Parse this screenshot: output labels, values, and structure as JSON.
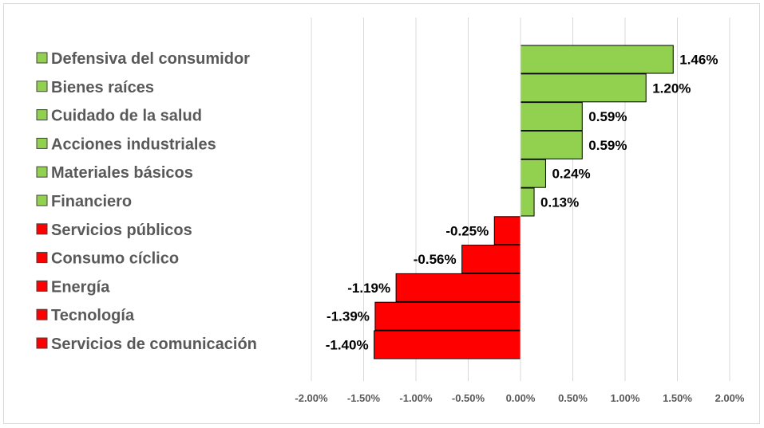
{
  "chart_data": {
    "type": "bar",
    "orientation": "horizontal",
    "categories": [
      "Defensiva del consumidor",
      "Bienes raíces",
      "Cuidado de la salud",
      "Acciones industriales",
      "Materiales básicos",
      "Financiero",
      "Servicios públicos",
      "Consumo cíclico",
      "Energía",
      "Tecnología",
      "Servicios de comunicación"
    ],
    "values": [
      1.46,
      1.2,
      0.59,
      0.59,
      0.24,
      0.13,
      -0.25,
      -0.56,
      -1.19,
      -1.39,
      -1.4
    ],
    "data_labels": [
      "1.46%",
      "1.20%",
      "0.59%",
      "0.59%",
      "0.24%",
      "0.13%",
      "-0.25%",
      "-0.56%",
      "-1.19%",
      "-1.39%",
      "-1.40%"
    ],
    "xlim": [
      -2.0,
      2.0
    ],
    "x_ticks": [
      -2.0,
      -1.5,
      -1.0,
      -0.5,
      0.0,
      0.5,
      1.0,
      1.5,
      2.0
    ],
    "x_tick_labels": [
      "-2.00%",
      "-1.50%",
      "-1.00%",
      "-0.50%",
      "0.00%",
      "0.50%",
      "1.00%",
      "1.50%",
      "2.00%"
    ],
    "grid": "vertical",
    "legend": "left",
    "colors": {
      "positive": "#92d050",
      "negative": "#ff0000"
    },
    "title": "",
    "xlabel": "",
    "ylabel": ""
  }
}
